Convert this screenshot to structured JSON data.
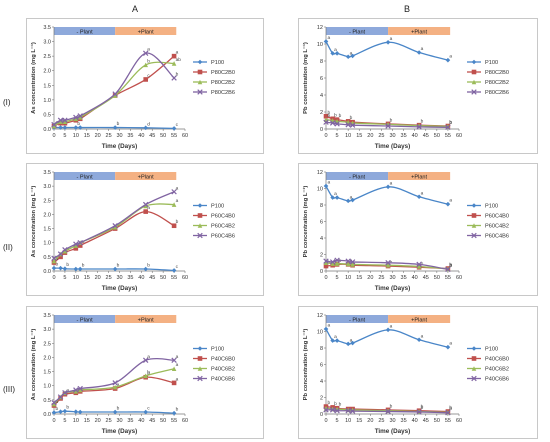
{
  "headers": {
    "col_a": "A",
    "col_b": "B",
    "rows": [
      "(I)",
      "(II)",
      "(III)"
    ]
  },
  "colors": {
    "P100": "#4a86c8",
    "C0": "#c0504d",
    "B2": "#9bbb59",
    "B6": "#8064a2",
    "minus_plant": "#8ea9db",
    "plus_plant": "#f4b183"
  },
  "chart_data": [
    {
      "type": "line",
      "panel": "A-I",
      "xlabel": "Time (Days)",
      "ylabel": "As concentration (mg L⁻¹)",
      "xlim": [
        0,
        60
      ],
      "ylim": [
        0,
        3.5
      ],
      "xticks": [
        0,
        5,
        10,
        15,
        20,
        25,
        30,
        35,
        40,
        45,
        50,
        55,
        60
      ],
      "yticks": [
        0,
        0.5,
        1.0,
        1.5,
        2.0,
        2.5,
        3.0,
        3.5
      ],
      "bands": [
        {
          "label": "- Plant",
          "from": 0,
          "to": 28
        },
        {
          "label": "+Plant",
          "from": 28,
          "to": 56
        }
      ],
      "x": [
        0,
        3,
        5,
        10,
        12,
        28,
        42,
        55
      ],
      "series": [
        {
          "name": "P100",
          "values": [
            0.05,
            0.05,
            0.05,
            0.05,
            0.05,
            0.05,
            0.04,
            0.02
          ],
          "letters": [
            "",
            "",
            "",
            "b",
            "",
            "b",
            "d",
            "c"
          ]
        },
        {
          "name": "P80C2B0",
          "values": [
            0.1,
            0.2,
            0.2,
            0.3,
            0.35,
            1.15,
            1.7,
            2.5
          ],
          "letters": [
            "a",
            "a",
            "",
            "a",
            "a",
            "a",
            "c",
            "a"
          ]
        },
        {
          "name": "P80C2B2",
          "values": [
            0.1,
            0.25,
            0.25,
            0.35,
            0.4,
            1.15,
            2.2,
            2.25
          ],
          "letters": [
            "",
            "",
            "",
            "",
            "",
            "",
            "b",
            "ab"
          ]
        },
        {
          "name": "P80C2B6",
          "values": [
            0.15,
            0.3,
            0.3,
            0.4,
            0.45,
            1.2,
            2.6,
            1.75
          ],
          "letters": [
            "",
            "",
            "",
            "",
            "",
            "",
            "a",
            "b"
          ]
        }
      ]
    },
    {
      "type": "line",
      "panel": "B-I",
      "xlabel": "Time (Days)",
      "ylabel": "Pb concentration (mg L⁻¹)",
      "xlim": [
        0,
        60
      ],
      "ylim": [
        0,
        12
      ],
      "xticks": [
        0,
        5,
        10,
        15,
        20,
        25,
        30,
        35,
        40,
        45,
        50,
        55,
        60
      ],
      "yticks": [
        0,
        2,
        4,
        6,
        8,
        10,
        12
      ],
      "bands": [
        {
          "label": "- Plant",
          "from": 0,
          "to": 28
        },
        {
          "label": "+Plant",
          "from": 28,
          "to": 56
        }
      ],
      "x": [
        0,
        3,
        5,
        10,
        12,
        28,
        42,
        55
      ],
      "series": [
        {
          "name": "P100",
          "values": [
            10.3,
            8.9,
            8.9,
            8.5,
            8.6,
            10.2,
            9.0,
            8.1
          ],
          "letters": [
            "a",
            "a",
            "",
            "a",
            "",
            "a",
            "a",
            "a"
          ]
        },
        {
          "name": "P80C2B0",
          "values": [
            1.5,
            1.2,
            1.1,
            0.9,
            0.8,
            0.6,
            0.45,
            0.35
          ],
          "letters": [
            "b",
            "b",
            "b",
            "b",
            "",
            "b",
            "b",
            "b"
          ]
        },
        {
          "name": "P80C2B2",
          "values": [
            1.1,
            1.0,
            0.9,
            0.8,
            0.7,
            0.55,
            0.4,
            0.3
          ],
          "letters": [
            "b",
            "",
            "",
            "",
            "",
            "",
            "",
            "b"
          ]
        },
        {
          "name": "P80C2B6",
          "values": [
            0.8,
            0.7,
            0.6,
            0.5,
            0.45,
            0.35,
            0.25,
            0.2
          ],
          "letters": [
            "",
            "",
            "",
            "",
            "",
            "",
            "",
            ""
          ]
        }
      ]
    },
    {
      "type": "line",
      "panel": "A-II",
      "xlabel": "Time (Days)",
      "ylabel": "As concentration (mg L⁻¹)",
      "xlim": [
        0,
        60
      ],
      "ylim": [
        0,
        3.5
      ],
      "xticks": [
        0,
        5,
        10,
        15,
        20,
        25,
        30,
        35,
        40,
        45,
        50,
        55,
        60
      ],
      "yticks": [
        0,
        0.5,
        1.0,
        1.5,
        2.0,
        2.5,
        3.0,
        3.5
      ],
      "bands": [
        {
          "label": "- Plant",
          "from": 0,
          "to": 28
        },
        {
          "label": "+Plant",
          "from": 28,
          "to": 56
        }
      ],
      "x": [
        0,
        3,
        5,
        10,
        12,
        28,
        42,
        55
      ],
      "series": [
        {
          "name": "P100",
          "values": [
            0.1,
            0.1,
            0.08,
            0.07,
            0.07,
            0.07,
            0.07,
            0.02
          ],
          "letters": [
            "b",
            "",
            "b",
            "",
            "b",
            "b",
            "b",
            "c"
          ]
        },
        {
          "name": "P60C4B0",
          "values": [
            0.3,
            0.5,
            0.65,
            0.8,
            0.9,
            1.5,
            2.1,
            1.6
          ],
          "letters": [
            "a",
            "a",
            "a",
            "a",
            "a",
            "a",
            "a",
            "b"
          ]
        },
        {
          "name": "P60C4B2",
          "values": [
            0.35,
            0.6,
            0.7,
            0.9,
            1.0,
            1.55,
            2.3,
            2.35
          ],
          "letters": [
            "",
            "",
            "",
            "",
            "",
            "",
            "",
            "a"
          ]
        },
        {
          "name": "P60C4B6",
          "values": [
            0.45,
            0.6,
            0.75,
            0.95,
            1.0,
            1.6,
            2.35,
            2.8
          ],
          "letters": [
            "",
            "",
            "",
            "",
            "",
            "",
            "",
            "a"
          ]
        }
      ]
    },
    {
      "type": "line",
      "panel": "B-II",
      "xlabel": "Time (Days)",
      "ylabel": "Pb concentration (mg L⁻¹)",
      "xlim": [
        0,
        60
      ],
      "ylim": [
        0,
        12
      ],
      "xticks": [
        0,
        5,
        10,
        15,
        20,
        25,
        30,
        35,
        40,
        45,
        50,
        55,
        60
      ],
      "yticks": [
        0,
        2,
        4,
        6,
        8,
        10,
        12
      ],
      "bands": [
        {
          "label": "- Plant",
          "from": 0,
          "to": 28
        },
        {
          "label": "+Plant",
          "from": 28,
          "to": 56
        }
      ],
      "x": [
        0,
        3,
        5,
        10,
        12,
        28,
        42,
        55
      ],
      "series": [
        {
          "name": "P100",
          "values": [
            10.3,
            8.9,
            8.9,
            8.5,
            8.6,
            10.2,
            9.0,
            8.1
          ],
          "letters": [
            "a",
            "a",
            "",
            "a",
            "",
            "a",
            "a",
            "a"
          ]
        },
        {
          "name": "P60C4B0",
          "values": [
            0.6,
            0.7,
            0.8,
            0.8,
            0.7,
            0.6,
            0.45,
            0.3
          ],
          "letters": [
            "b",
            "b",
            "b",
            "b",
            "",
            "b",
            "b",
            "b"
          ]
        },
        {
          "name": "P60C4B2",
          "values": [
            1.0,
            0.9,
            0.9,
            0.85,
            0.8,
            0.7,
            0.55,
            0.25
          ],
          "letters": [
            "",
            "",
            "",
            "",
            "",
            "",
            "",
            "b"
          ]
        },
        {
          "name": "P60C4B6",
          "values": [
            1.2,
            1.1,
            1.3,
            1.2,
            1.1,
            1.0,
            0.8,
            0.2
          ],
          "letters": [
            "",
            "",
            "",
            "",
            "",
            "",
            "",
            "b"
          ]
        }
      ]
    },
    {
      "type": "line",
      "panel": "A-III",
      "xlabel": "Time (Days)",
      "ylabel": "As concentration (mg L⁻¹)",
      "xlim": [
        0,
        60
      ],
      "ylim": [
        0,
        3.5
      ],
      "xticks": [
        0,
        5,
        10,
        15,
        20,
        25,
        30,
        35,
        40,
        45,
        50,
        55,
        60
      ],
      "yticks": [
        0,
        0.5,
        1.0,
        1.5,
        2.0,
        2.5,
        3.0,
        3.5
      ],
      "bands": [
        {
          "label": "- Plant",
          "from": 0,
          "to": 28
        },
        {
          "label": "+Plant",
          "from": 28,
          "to": 56
        }
      ],
      "x": [
        0,
        3,
        5,
        10,
        12,
        28,
        42,
        55
      ],
      "series": [
        {
          "name": "P100",
          "values": [
            0.05,
            0.08,
            0.1,
            0.08,
            0.07,
            0.07,
            0.07,
            0.03
          ],
          "letters": [
            "b",
            "",
            "b",
            "",
            "",
            "b",
            "c",
            "b"
          ]
        },
        {
          "name": "P40C6B0",
          "values": [
            0.3,
            0.55,
            0.7,
            0.75,
            0.8,
            0.9,
            1.3,
            1.1
          ],
          "letters": [
            "a",
            "a",
            "a",
            "a",
            "",
            "a",
            "b",
            "a"
          ]
        },
        {
          "name": "P40C6B2",
          "values": [
            0.35,
            0.6,
            0.75,
            0.8,
            0.85,
            0.95,
            1.35,
            1.6
          ],
          "letters": [
            "",
            "",
            "",
            "",
            "",
            "",
            "b",
            "a"
          ]
        },
        {
          "name": "P40C6B6",
          "values": [
            0.4,
            0.6,
            0.75,
            0.85,
            0.9,
            1.1,
            1.9,
            1.9
          ],
          "letters": [
            "",
            "",
            "",
            "",
            "",
            "",
            "a",
            "a"
          ]
        }
      ]
    },
    {
      "type": "line",
      "panel": "B-III",
      "xlabel": "Time (Days)",
      "ylabel": "Pb concentration (mg L⁻¹)",
      "xlim": [
        0,
        60
      ],
      "ylim": [
        0,
        12
      ],
      "xticks": [
        0,
        5,
        10,
        15,
        20,
        25,
        30,
        35,
        40,
        45,
        50,
        55,
        60
      ],
      "yticks": [
        0,
        2,
        4,
        6,
        8,
        10,
        12
      ],
      "bands": [
        {
          "label": "- Plant",
          "from": 0,
          "to": 28
        },
        {
          "label": "+Plant",
          "from": 28,
          "to": 56
        }
      ],
      "x": [
        0,
        3,
        5,
        10,
        12,
        28,
        42,
        55
      ],
      "series": [
        {
          "name": "P100",
          "values": [
            10.3,
            8.9,
            8.9,
            8.5,
            8.6,
            10.2,
            9.0,
            8.1
          ],
          "letters": [
            "a",
            "a",
            "",
            "a",
            "",
            "a",
            "a",
            "a"
          ]
        },
        {
          "name": "P40C6B0",
          "values": [
            0.9,
            0.8,
            0.7,
            0.6,
            0.6,
            0.5,
            0.4,
            0.3
          ],
          "letters": [
            "b",
            "b",
            "b",
            "",
            "",
            "b",
            "b",
            "b"
          ]
        },
        {
          "name": "P40C6B2",
          "values": [
            0.7,
            0.6,
            0.6,
            0.5,
            0.5,
            0.4,
            0.3,
            0.2
          ],
          "letters": [
            "",
            "",
            "",
            "",
            "",
            "",
            "b",
            "b"
          ]
        },
        {
          "name": "P40C6B6",
          "values": [
            0.5,
            0.5,
            0.4,
            0.4,
            0.35,
            0.3,
            0.25,
            0.15
          ],
          "letters": [
            "",
            "",
            "",
            "",
            "",
            "",
            "",
            ""
          ]
        }
      ]
    }
  ]
}
